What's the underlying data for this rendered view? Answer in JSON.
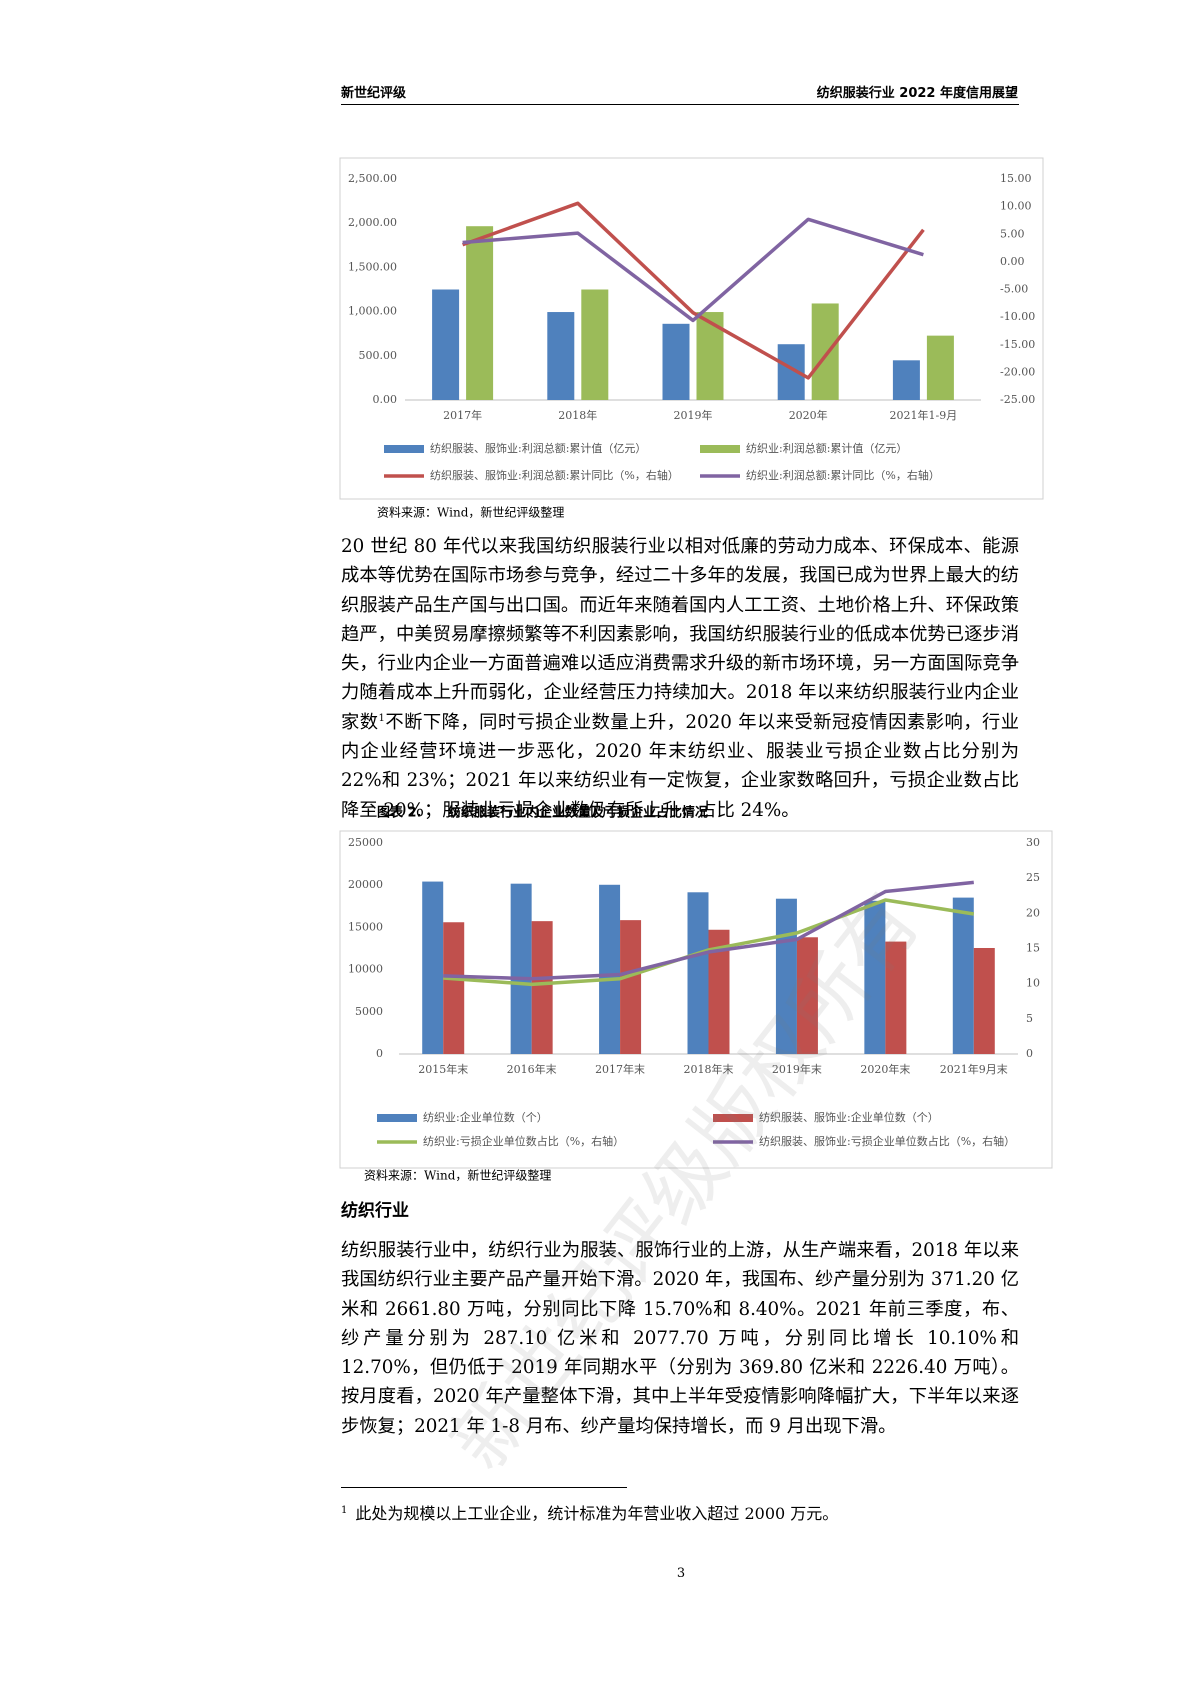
{
  "header": {
    "left": "新世纪评级",
    "right": "纺织服装行业 2022 年度信用展望"
  },
  "chart_data": [
    {
      "type": "combo",
      "categories": [
        "2017年",
        "2018年",
        "2019年",
        "2020年",
        "2021年1-9月"
      ],
      "series": [
        {
          "name": "纺织服装、服饰业:利润总额:累计值（亿元）",
          "type": "bar",
          "color": "#4f81bd",
          "values": [
            1250,
            995,
            862,
            631,
            449
          ]
        },
        {
          "name": "纺织业:利润总额:累计值（亿元）",
          "type": "bar",
          "color": "#9bbb59",
          "values": [
            1966,
            1250,
            995,
            1092,
            728
          ]
        },
        {
          "name": "纺织服装、服饰业:利润总额:累计同比（%，右轴）",
          "type": "line",
          "axis": "y2",
          "color": "#c0504d",
          "values": [
            3.1,
            10.6,
            -9.2,
            -21.0,
            5.8
          ]
        },
        {
          "name": "纺织业:利润总额:累计同比（%，右轴）",
          "type": "line",
          "axis": "y2",
          "color": "#8064a2",
          "values": [
            3.5,
            5.2,
            -10.6,
            7.7,
            1.3
          ]
        }
      ],
      "ylim": [
        0,
        2500
      ],
      "yticks": [
        {
          "value": 0,
          "label": "0.00"
        },
        {
          "value": 500,
          "label": "500.00"
        },
        {
          "value": 1000,
          "label": "1,000.00"
        },
        {
          "value": 1500,
          "label": "1,500.00"
        },
        {
          "value": 2000,
          "label": "2,000.00"
        },
        {
          "value": 2500,
          "label": "2,500.00"
        }
      ],
      "y2lim": [
        -25,
        15
      ],
      "y2ticks": [
        {
          "value": -25,
          "label": "-25.00"
        },
        {
          "value": -20,
          "label": "-20.00"
        },
        {
          "value": -15,
          "label": "-15.00"
        },
        {
          "value": -10,
          "label": "-10.00"
        },
        {
          "value": -5,
          "label": "-5.00"
        },
        {
          "value": 0,
          "label": "0.00"
        },
        {
          "value": 5,
          "label": "5.00"
        },
        {
          "value": 10,
          "label": "10.00"
        },
        {
          "value": 15,
          "label": "15.00"
        }
      ],
      "grid": false,
      "source": "资料来源：Wind，新世纪评级整理"
    },
    {
      "type": "combo",
      "label": "图表 2.",
      "title": "纺织服装行业内企业数量及亏损企业占比情况",
      "categories": [
        "2015年末",
        "2016年末",
        "2017年末",
        "2018年末",
        "2019年末",
        "2020年末",
        "2021年9月末"
      ],
      "series": [
        {
          "name": "纺织业:企业单位数（个）",
          "type": "bar",
          "color": "#4f81bd",
          "values": [
            20430,
            20180,
            20050,
            19160,
            18400,
            18150,
            18530
          ]
        },
        {
          "name": "纺织服装、服饰业:企业单位数（个）",
          "type": "bar",
          "color": "#c0504d",
          "values": [
            15610,
            15740,
            15860,
            14720,
            13830,
            13320,
            12560
          ]
        },
        {
          "name": "纺织业:亏损企业单位数占比（%，右轴）",
          "type": "line",
          "axis": "y2",
          "color": "#9bbb59",
          "values": [
            10.8,
            9.9,
            10.7,
            14.8,
            17.2,
            21.9,
            19.9
          ]
        },
        {
          "name": "纺织服装、服饰业:亏损企业单位数占比（%，右轴）",
          "type": "line",
          "axis": "y2",
          "color": "#8064a2",
          "values": [
            11.1,
            10.7,
            11.3,
            14.5,
            16.3,
            23.1,
            24.4
          ]
        }
      ],
      "ylim": [
        0,
        25000
      ],
      "yticks": [
        0,
        5000,
        10000,
        15000,
        20000,
        25000
      ],
      "y2lim": [
        0,
        30
      ],
      "y2ticks": [
        0,
        5,
        10,
        15,
        20,
        25,
        30
      ],
      "grid": false,
      "source": "资料来源：Wind，新世纪评级整理"
    }
  ],
  "paragraph_1": {
    "before": "20 世纪 80 年代以来我国纺织服装行业以相对低廉的劳动力成本、环保成本、能源成本等优势在国际市场参与竞争，经过二十多年的发展，我国已成为世界上最大的纺织服装产品生产国与出口国。而近年来随着国内人工工资、土地价格上升、环保政策趋严，中美贸易摩擦频繁等不利因素影响，我国纺织服装行业的低成本优势已逐步消失，行业内企业一方面普遍难以适应消费需求升级的新市场环境，另一方面国际竞争力随着成本上升而弱化，企业经营压力持续加大。2018 年以来纺织服装行业内企业家数",
    "footnote_ref": "1",
    "after": "不断下降，同时亏损企业数量上升，2020 年以来受新冠疫情因素影响，行业内企业经营环境进一步恶化，2020 年末纺织业、服装业亏损企业数占比分别为 22%和 23%；2021 年以来纺织业有一定恢复，企业家数略回升，亏损企业数占比降至 20%；服装业亏损企业数仍有所上升，占比 24%。"
  },
  "section_heading": "纺织行业",
  "paragraph_2": "纺织服装行业中，纺织行业为服装、服饰行业的上游，从生产端来看，2018 年以来我国纺织行业主要产品产量开始下滑。2020 年，我国布、纱产量分别为 371.20 亿米和 2661.80 万吨，分别同比下降 15.70%和 8.40%。2021 年前三季度，布、纱产量分别为 287.10 亿米和 2077.70 万吨，分别同比增长 10.10%和 12.70%，但仍低于 2019 年同期水平（分别为 369.80 亿米和 2226.40 万吨）。按月度看，2020 年产量整体下滑，其中上半年受疫情影响降幅扩大，下半年以来逐步恢复；2021 年 1-8 月布、纱产量均保持增长，而 9 月出现下滑。",
  "footnote": {
    "number": "1",
    "text": "此处为规模以上工业企业，统计标准为年营业收入超过 2000 万元。"
  },
  "page_number": "3",
  "watermark": "新世纪评级版权所有"
}
